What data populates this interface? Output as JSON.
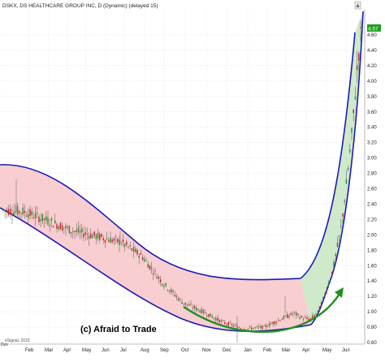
{
  "chart_data": {
    "type": "candlestick",
    "title": "DSKX, DS HEALTHCARE GROUP INC, D (Dynamic) (delayed 15)",
    "watermark": "(c) Afraid to Trade",
    "source_note": "eSignal, 2015",
    "corner_label": "Dys",
    "last_price_tag": "4.57",
    "x_tick_labels": [
      "Feb",
      "Mar",
      "Apr",
      "May",
      "Jun",
      "Jul",
      "Aug",
      "Sep",
      "Oct",
      "Nov",
      "Dec",
      "Jan",
      "Feb",
      "Mar",
      "Apr",
      "May",
      "Jun"
    ],
    "y_tick_labels": [
      "0.60",
      "0.80",
      "1.00",
      "1.20",
      "1.40",
      "1.60",
      "1.80",
      "2.00",
      "2.20",
      "2.40",
      "2.60",
      "2.80",
      "3.00",
      "3.20",
      "3.40",
      "3.60",
      "3.80",
      "4.00",
      "4.20",
      "4.40",
      "4.60"
    ],
    "y_values": [
      0.6,
      0.8,
      1.0,
      1.2,
      1.4,
      1.6,
      1.8,
      2.0,
      2.2,
      2.4,
      2.6,
      2.8,
      3.0,
      3.2,
      3.4,
      3.6,
      3.8,
      4.0,
      4.2,
      4.4,
      4.6
    ],
    "ylim": [
      0.42,
      4.87
    ],
    "series": [
      {
        "approx_close_by_month": [
          [
            "Jan",
            2.35
          ],
          [
            "Feb",
            2.3
          ],
          [
            "Mar",
            2.2
          ],
          [
            "Apr",
            2.05
          ],
          [
            "May",
            2.0
          ],
          [
            "Jun",
            1.95
          ],
          [
            "Jul",
            1.85
          ],
          [
            "Aug",
            1.6
          ],
          [
            "Sep",
            1.3
          ],
          [
            "Oct",
            1.05
          ],
          [
            "Nov",
            0.95
          ],
          [
            "Dec",
            0.8
          ],
          [
            "Jan",
            0.8
          ],
          [
            "Feb",
            0.85
          ],
          [
            "Mar",
            0.95
          ],
          [
            "Apr",
            1.05
          ],
          [
            "May",
            1.6
          ],
          [
            "Jun",
            4.3
          ]
        ]
      }
    ],
    "channels": [
      {
        "name": "downtrend-arc",
        "fill": "#f7c6c8",
        "stroke": "#1c1ab8"
      },
      {
        "name": "uptrend-parabola",
        "fill": "#c9e8c4",
        "stroke": "#1c1ab8"
      }
    ],
    "arrows": [
      {
        "name": "rounded-bottom-arrow",
        "color": "#1f8f1f"
      }
    ],
    "colors": {
      "up_candle": "#2a8a2a",
      "down_candle": "#c02020",
      "grid": "#d0d0d0",
      "axis_text": "#222222",
      "price_tag": "#1fa01f"
    },
    "grid": true
  }
}
